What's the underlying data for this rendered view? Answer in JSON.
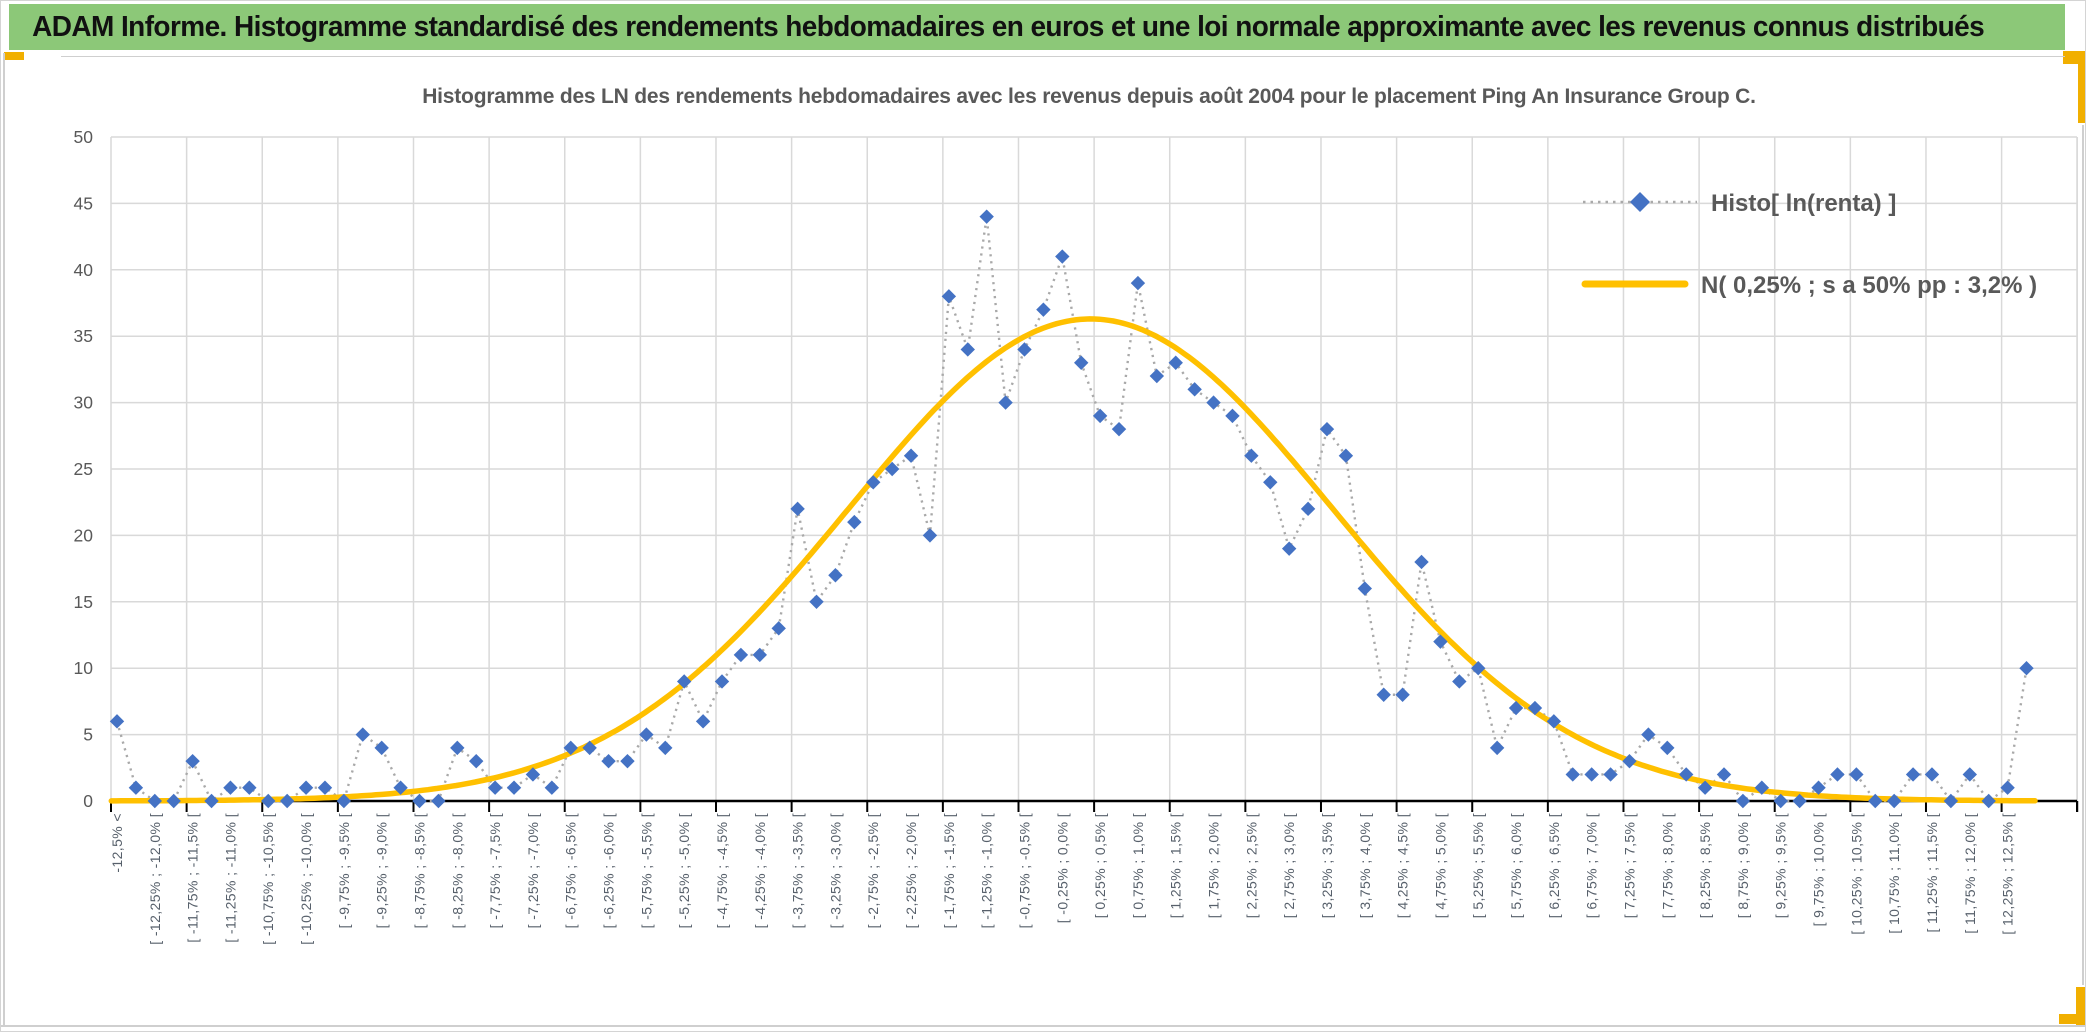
{
  "header": {
    "title": "ADAM Informe. Histogramme standardisé des rendements hebdomadaires en euros et une loi normale approximante avec les revenus connus distribués"
  },
  "chart_data": {
    "type": "line",
    "title": "Histogramme des LN des rendements hebdomadaires avec les revenus depuis août 2004 pour le placement Ping An Insurance Group C.",
    "ylim": [
      0,
      50
    ],
    "ytick_step": 5,
    "grid": true,
    "legend_position": "inside-top-right",
    "x_bins": {
      "underflow_label": "-12,5% <",
      "bin_width_pct": 0.25,
      "range_pct": [
        -12.5,
        12.5
      ],
      "categories_count": 102,
      "labels_shown_every_other_bin": true
    },
    "x_tick_labels": [
      "-12,5% <",
      "[ -12,25% ; -12,0% [",
      "[ -11,75% ; -11,5% [",
      "[ -11,25% ; -11,0% [",
      "[ -10,75% ; -10,5% [",
      "[ -10,25% ; -10,0% [",
      "[ -9,75% ; -9,5% [",
      "[ -9,25% ; -9,0% [",
      "[ -8,75% ; -8,5% [",
      "[ -8,25% ; -8,0% [",
      "[ -7,75% ; -7,5% [",
      "[ -7,25% ; -7,0% [",
      "[ -6,75% ; -6,5% [",
      "[ -6,25% ; -6,0% [",
      "[ -5,75% ; -5,5% [",
      "[ -5,25% ; -5,0% [",
      "[ -4,75% ; -4,5% [",
      "[ -4,25% ; -4,0% [",
      "[ -3,75% ; -3,5% [",
      "[ -3,25% ; -3,0% [",
      "[ -2,75% ; -2,5% [",
      "[ -2,25% ; -2,0% [",
      "[ -1,75% ; -1,5% [",
      "[ -1,25% ; -1,0% [",
      "[ -0,75% ; -0,5% [",
      "[ -0,25% ; 0,0% [",
      "[ 0,25% ; 0,5% [",
      "[ 0,75% ; 1,0% [",
      "[ 1,25% ; 1,5% [",
      "[ 1,75% ; 2,0% [",
      "[ 2,25% ; 2,5% [",
      "[ 2,75% ; 3,0% [",
      "[ 3,25% ; 3,5% [",
      "[ 3,75% ; 4,0% [",
      "[ 4,25% ; 4,5% [",
      "[ 4,75% ; 5,0% [",
      "[ 5,25% ; 5,5% [",
      "[ 5,75% ; 6,0% [",
      "[ 6,25% ; 6,5% [",
      "[ 6,75% ; 7,0% [",
      "[ 7,25% ; 7,5% [",
      "[ 7,75% ; 8,0% [",
      "[ 8,25% ; 8,5% [",
      "[ 8,75% ; 9,0% [",
      "[ 9,25% ; 9,5% [",
      "[ 9,75% ; 10,0% [",
      "[ 10,25% ; 10,5% [",
      "[ 10,75% ; 11,0% [",
      "[ 11,25% ; 11,5% [",
      "[ 11,75% ; 12,0% [",
      "[ 12,25% ; 12,5% ["
    ],
    "series": [
      {
        "name": "Histo[ ln(renta) ]",
        "style": "markers-with-dotted-line",
        "marker": "diamond",
        "marker_color": "#4472C4",
        "line_color": "#A9A9A9",
        "values": [
          6,
          1,
          0,
          0,
          3,
          0,
          1,
          1,
          0,
          0,
          1,
          1,
          0,
          5,
          4,
          1,
          0,
          0,
          4,
          3,
          1,
          1,
          2,
          1,
          4,
          4,
          3,
          3,
          5,
          4,
          9,
          6,
          9,
          11,
          11,
          13,
          22,
          15,
          17,
          21,
          24,
          25,
          26,
          20,
          38,
          34,
          44,
          30,
          34,
          37,
          41,
          33,
          29,
          28,
          39,
          32,
          33,
          31,
          30,
          29,
          26,
          24,
          19,
          22,
          28,
          26,
          16,
          8,
          8,
          18,
          12,
          9,
          10,
          4,
          7,
          7,
          6,
          2,
          2,
          2,
          3,
          5,
          4,
          2,
          1,
          2,
          0,
          1,
          0,
          0,
          1,
          2,
          2,
          0,
          0,
          2,
          2,
          0,
          2,
          0,
          1,
          10
        ]
      },
      {
        "name": "N( 0,25% ; s a 50% pp : 3,2% )",
        "style": "smooth-normal-curve",
        "color": "#FFC000",
        "mean_pct": 0.25,
        "sd_pct": 3.2,
        "peak_y": 36.3
      }
    ]
  },
  "colors": {
    "header_bg": "#8CC878",
    "accent_gold": "#F1AF00",
    "marker_blue": "#4472C4",
    "curve_gold": "#FFC000",
    "gridline": "#D9D9D9",
    "axis_black": "#000000",
    "label_gray": "#595959",
    "x_label_gray": "#57606B"
  }
}
